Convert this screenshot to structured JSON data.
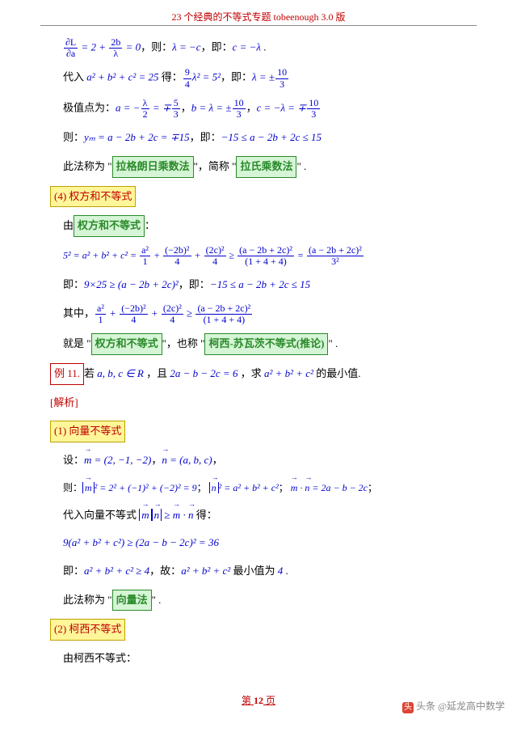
{
  "header": "23 个经典的不等式专题  tobeenough 3.0 版",
  "l1_a": "∂L",
  "l1_b": "∂a",
  "l1_c": "2b",
  "l1_d": "λ",
  "l1_rest": " = 2 + ",
  "l1_eq": " = 0",
  "l1_t1": "，则：",
  "l1_m1": "λ = −c",
  "l1_t2": "，即：",
  "l1_m2": "c = −λ",
  "l1_t3": " .",
  "l2_t1": "代入 ",
  "l2_m1": "a² + b² + c² = 25",
  "l2_t2": " 得：",
  "l2_f1n": "9",
  "l2_f1d": "4",
  "l2_m2": "λ² = 5²",
  "l2_t3": "，即：",
  "l2_m3": "λ = ±",
  "l2_f2n": "10",
  "l2_f2d": "3",
  "l3_t1": "极值点为：",
  "l3_m1": "a = −",
  "l3_f1n": "λ",
  "l3_f1d": "2",
  "l3_m1b": " = ∓",
  "l3_f2n": "5",
  "l3_f2d": "3",
  "l3_t2": "，",
  "l3_m2": "b = λ = ±",
  "l3_f3n": "10",
  "l3_f3d": "3",
  "l3_t3": "，",
  "l3_m3": "c = −λ = ∓",
  "l3_f4n": "10",
  "l3_f4d": "3",
  "l4_t1": "则：",
  "l4_m1": "yₘ = a − 2b + 2c = ∓15",
  "l4_t2": "，即：",
  "l4_m2": "−15 ≤ a − 2b + 2c ≤ 15",
  "l5_t1": "此法称为 \"",
  "l5_b1": "拉格朗日乘数法",
  "l5_t2": "\"，简称 \"",
  "l5_b2": "拉氏乘数法",
  "l5_t3": "\" .",
  "s4": "(4) 权方和不等式",
  "l6_t1": "由",
  "l6_b1": "权方和不等式",
  "l6_t2": "：",
  "l7_m": "5² = a² + b² + c² = ",
  "l7_f1n": "a²",
  "l7_f1d": "1",
  "l7_p": " + ",
  "l7_f2n": "(−2b)²",
  "l7_f2d": "4",
  "l7_f3n": "(2c)²",
  "l7_f3d": "4",
  "l7_ge": " ≥ ",
  "l7_f4n": "(a − 2b + 2c)²",
  "l7_f4d": "(1 + 4 + 4)",
  "l7_eq": " = ",
  "l7_f5n": "(a − 2b + 2c)²",
  "l7_f5d": "3²",
  "l8_t1": "即：",
  "l8_m1": "9×25 ≥ (a − 2b + 2c)²",
  "l8_t2": "，即：",
  "l8_m2": "−15 ≤ a − 2b + 2c ≤ 15",
  "l9_t1": "其中，",
  "l10_t1": "就是 \"",
  "l10_b1": "权方和不等式",
  "l10_t2": "\"，也称 \"",
  "l10_b2": "柯西-苏瓦茨不等式(推论)",
  "l10_t3": "\" .",
  "ex11": "例 11.",
  "ex11_t1": "若 ",
  "ex11_m1": "a, b, c ∈ R",
  "ex11_t2": " ，且 ",
  "ex11_m2": "2a − b − 2c = 6",
  "ex11_t3": " ，求 ",
  "ex11_m3": "a² + b² + c²",
  "ex11_t4": " 的最小值.",
  "ans": "[解析]",
  "s1": "(1) 向量不等式",
  "v1_t1": "设：",
  "v1_m1": "m",
  "v1_m1v": " = (2, −1, −2)",
  "v1_t2": "，",
  "v1_m2": "n",
  "v1_m2v": " = (a, b, c)",
  "v1_t3": "，",
  "v2_t1": "则：",
  "v2_m1": "|m|² = 2² + (−1)² + (−2)² = 9",
  "v2_t2": "；",
  "v2_m2": "|n|² = a² + b² + c²",
  "v2_t3": "；",
  "v2_m3": "m · n = 2a − b − 2c",
  "v2_t4": "；",
  "v3_t1": "代入向量不等式 ",
  "v3_m1": "|m||n| ≥ m · n",
  "v3_t2": " 得：",
  "v4_m": "9(a² + b² + c²) ≥ (2a − b − 2c)² = 36",
  "v5_t1": "即：",
  "v5_m1": "a² + b² + c² ≥ 4",
  "v5_t2": "，故：",
  "v5_m2": "a² + b² + c²",
  "v5_t3": " 最小值为 ",
  "v5_m3": "4",
  "v5_t4": " .",
  "v6_t1": "此法称为 \"",
  "v6_b1": "向量法",
  "v6_t2": "\" .",
  "s2": "(2) 柯西不等式",
  "c1": "由柯西不等式：",
  "footer_a": "第 ",
  "footer_b": "12",
  "footer_c": " 页",
  "wm": "头条 @延龙高中数学"
}
